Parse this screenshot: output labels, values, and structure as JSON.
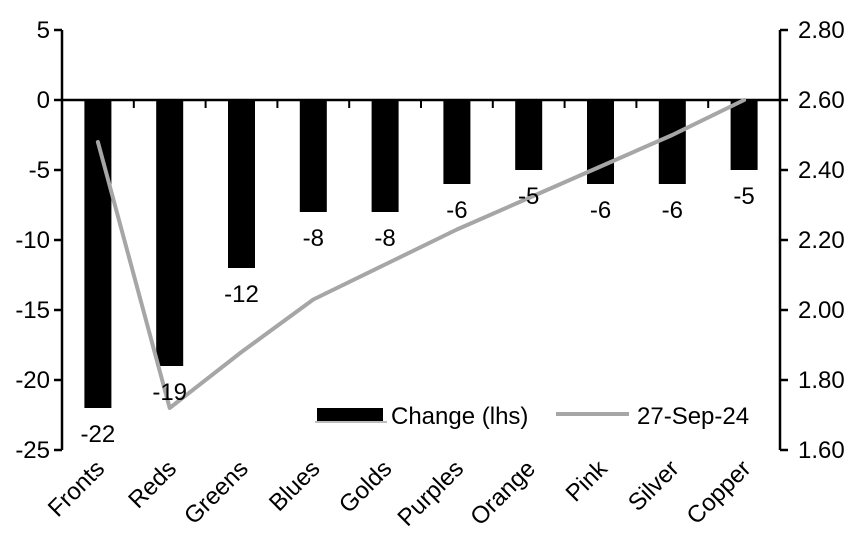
{
  "chart_data": {
    "type": "combo_bar_line",
    "title": "",
    "categories": [
      "Fronts",
      "Reds",
      "Greens",
      "Blues",
      "Golds",
      "Purples",
      "Orange",
      "Pink",
      "Silver",
      "Copper"
    ],
    "series": [
      {
        "name": "Change (lhs)",
        "type": "bar",
        "axis": "left",
        "color": "#000000",
        "values": [
          -22,
          -19,
          -12,
          -8,
          -8,
          -6,
          -5,
          -6,
          -6,
          -5
        ],
        "data_labels": [
          "-22",
          "-19",
          "-12",
          "-8",
          "-8",
          "-6",
          "-5",
          "-6",
          "-6",
          "-5"
        ]
      },
      {
        "name": "27-Sep-24",
        "type": "line",
        "axis": "right",
        "color": "#a6a6a6",
        "values": [
          2.48,
          1.72,
          1.88,
          2.03,
          2.13,
          2.23,
          2.32,
          2.41,
          2.5,
          2.6
        ]
      }
    ],
    "left_axis": {
      "label": "",
      "min": -25,
      "max": 5,
      "tick_step": 5,
      "ticks": [
        "5",
        "0",
        "-5",
        "-10",
        "-15",
        "-20",
        "-25"
      ]
    },
    "right_axis": {
      "label": "",
      "min": 1.6,
      "max": 2.8,
      "tick_step": 0.2,
      "ticks": [
        "2.80",
        "2.60",
        "2.40",
        "2.20",
        "2.00",
        "1.80",
        "1.60"
      ]
    },
    "legend": {
      "position": "bottom-inside",
      "items": [
        "Change (lhs)",
        "27-Sep-24"
      ]
    },
    "grid": false,
    "colors": {
      "background": "#ffffff",
      "axis": "#000000",
      "text": "#000000",
      "bar": "#000000",
      "line": "#a6a6a6",
      "legend_underline": "#a6a6a6"
    }
  }
}
